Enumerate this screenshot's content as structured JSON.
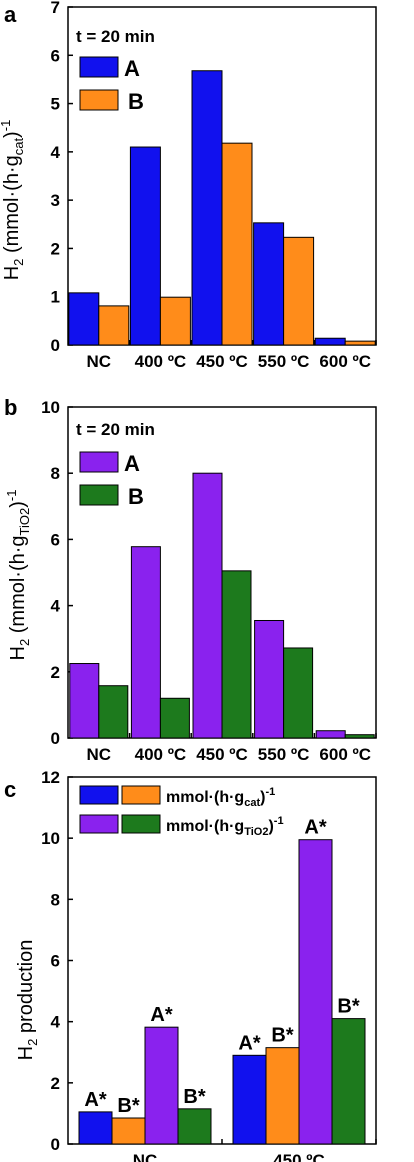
{
  "colors": {
    "A_cat": "#1111ee",
    "B_cat": "#ff8c1a",
    "A_tio2": "#8a22ee",
    "B_tio2": "#1d7a1d"
  },
  "chart_data": [
    {
      "panel": "a",
      "type": "bar",
      "categories": [
        "NC",
        "400 ºC",
        "450 ºC",
        "550 ºC",
        "600 ºC"
      ],
      "series": [
        {
          "name": "A",
          "values": [
            1.08,
            4.1,
            5.68,
            2.53,
            0.14
          ]
        },
        {
          "name": "B",
          "values": [
            0.81,
            0.99,
            4.18,
            2.23,
            0.08
          ]
        }
      ],
      "ylabel": "H2 (mmol·(h·gcat)-1)",
      "ylim": [
        0,
        7
      ],
      "yticks": [
        0,
        1,
        2,
        3,
        4,
        5,
        6,
        7
      ],
      "note": "t = 20 min",
      "legend_position": "top-left"
    },
    {
      "panel": "b",
      "type": "bar",
      "categories": [
        "NC",
        "400 ºC",
        "450 ºC",
        "550 ºC",
        "600 ºC"
      ],
      "series": [
        {
          "name": "A",
          "values": [
            2.25,
            5.78,
            8.0,
            3.55,
            0.22
          ]
        },
        {
          "name": "B",
          "values": [
            1.58,
            1.2,
            5.05,
            2.72,
            0.1
          ]
        }
      ],
      "ylabel": "H2 (mmol·(h·gTiO2)-1)",
      "ylim": [
        0,
        10
      ],
      "yticks": [
        0,
        2,
        4,
        6,
        8,
        10
      ],
      "note": "t = 20 min",
      "legend_position": "top-left"
    },
    {
      "panel": "c",
      "type": "bar",
      "categories": [
        "NC",
        "450 ºC"
      ],
      "series": [
        {
          "name": "A* mmol·(h·gcat)-1",
          "values": [
            1.05,
            2.9
          ]
        },
        {
          "name": "B* mmol·(h·gcat)-1",
          "values": [
            0.85,
            3.15
          ]
        },
        {
          "name": "A* mmol·(h·gTiO2)-1",
          "values": [
            3.82,
            9.95
          ]
        },
        {
          "name": "B* mmol·(h·gTiO2)-1",
          "values": [
            1.15,
            4.1
          ]
        }
      ],
      "bar_labels": [
        "A*",
        "B*",
        "A*",
        "B*"
      ],
      "ylabel": "H2 production",
      "ylim": [
        0,
        12
      ],
      "yticks": [
        0,
        2,
        4,
        6,
        8,
        10,
        12
      ],
      "legend_entries": [
        "mmol·(h·gcat)-1",
        "mmol·(h·gTiO2)-1"
      ],
      "legend_position": "top-left"
    }
  ]
}
